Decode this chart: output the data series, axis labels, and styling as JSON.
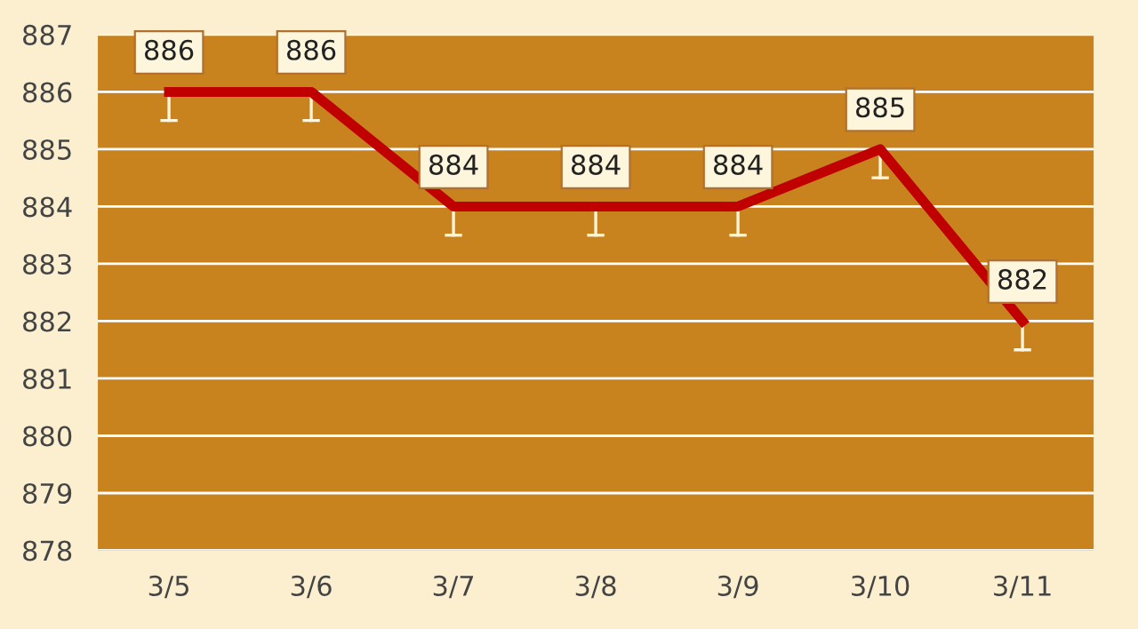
{
  "chart_data": {
    "type": "line",
    "categories": [
      "3/5",
      "3/6",
      "3/7",
      "3/8",
      "3/9",
      "3/10",
      "3/11"
    ],
    "series": [
      {
        "color": "#c00000",
        "values": [
          886,
          886,
          884,
          884,
          884,
          885,
          882
        ],
        "errors": [
          [
            885.5,
            886
          ],
          [
            885.5,
            886
          ],
          [
            883.5,
            884
          ],
          [
            883.5,
            884
          ],
          [
            883.5,
            884
          ],
          [
            884.5,
            885
          ],
          [
            881.5,
            882
          ]
        ]
      }
    ],
    "ylim": [
      878,
      887
    ],
    "yticks": [
      878,
      879,
      880,
      881,
      882,
      883,
      884,
      885,
      886,
      887
    ],
    "grid": "y",
    "data_labels": true,
    "marker": "none",
    "line_style": "solid",
    "legend": false
  }
}
